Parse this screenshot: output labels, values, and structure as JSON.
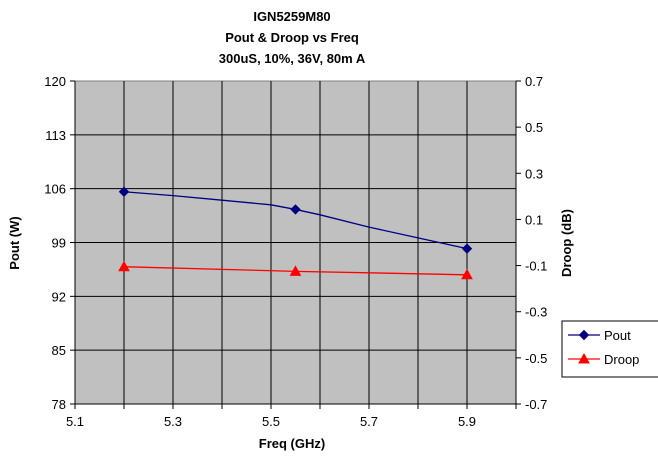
{
  "chart_data": {
    "type": "line",
    "title": [
      "IGN5259M80",
      "Pout & Droop vs Freq",
      "300uS, 10%, 36V, 80m A"
    ],
    "xlabel": "Freq (GHz)",
    "ylabel": "Pout (W)",
    "y2label": "Droop (dB)",
    "xlim": [
      5.1,
      6.0
    ],
    "xticks": [
      "5.1",
      "5.3",
      "5.5",
      "5.7",
      "5.9"
    ],
    "ylim": [
      78,
      120
    ],
    "yticks": [
      "78",
      "85",
      "92",
      "99",
      "106",
      "113",
      "120"
    ],
    "y2lim": [
      -0.7,
      0.7
    ],
    "y2ticks": [
      "-0.7",
      "-0.5",
      "-0.3",
      "-0.1",
      "0.1",
      "0.3",
      "0.5",
      "0.7"
    ],
    "grid": true,
    "legend_position": "right",
    "plot_background": "#c0c0c0",
    "series": [
      {
        "name": "Pout",
        "axis": "left",
        "color": "#000080",
        "marker": "diamond",
        "x": [
          5.2,
          5.55,
          5.9
        ],
        "y": [
          105.6,
          103.3,
          98.2
        ],
        "curve_x": [
          5.2,
          5.3,
          5.4,
          5.5,
          5.55,
          5.6,
          5.7,
          5.8,
          5.9
        ],
        "curve_y": [
          105.6,
          105.1,
          104.5,
          103.9,
          103.3,
          102.6,
          101.0,
          99.6,
          98.2
        ]
      },
      {
        "name": "Droop",
        "axis": "right",
        "color": "#ff0000",
        "marker": "triangle",
        "x": [
          5.2,
          5.55,
          5.9
        ],
        "y": [
          -0.105,
          -0.125,
          -0.14
        ]
      }
    ]
  }
}
